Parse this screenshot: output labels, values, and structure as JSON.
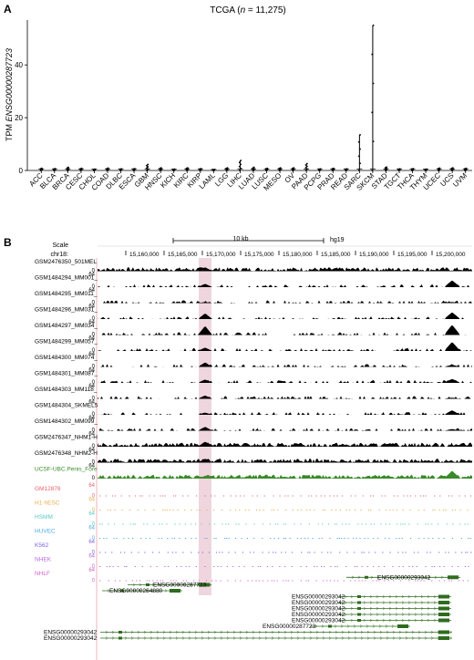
{
  "panel_a": {
    "letter": "A",
    "title_prefix": "TCGA (",
    "title_n": "n",
    "title_suffix": " = 11,275)",
    "ylabel_prefix": "TPM ",
    "ylabel_gene": "ENSG00000287723",
    "chart_data": {
      "type": "scatter",
      "title": "TCGA (n = 11,275)",
      "ylabel": "TPM ENSG00000287723",
      "ylim": [
        0,
        57
      ],
      "yticks": [
        0,
        20,
        40
      ],
      "categories": [
        "ACC",
        "BLCA",
        "BRCA",
        "CESC",
        "CHOL",
        "COAD",
        "DLBC",
        "ESCA",
        "GBM",
        "HNSC",
        "KICH",
        "KIRC",
        "KIRP",
        "LAML",
        "LGG",
        "LIHC",
        "LUAD",
        "LUSC",
        "MESO",
        "OV",
        "PAAD",
        "PCPG",
        "PRAD",
        "READ",
        "SARC",
        "SKCM",
        "STAD",
        "TGCT",
        "THCA",
        "THYM",
        "UCEC",
        "UCS",
        "UVM"
      ],
      "max_values": [
        0.8,
        0.7,
        1.2,
        0.8,
        0.5,
        0.9,
        0.6,
        0.7,
        2.3,
        1.0,
        0.5,
        1.0,
        0.7,
        0.4,
        1.0,
        3.8,
        1.2,
        0.8,
        1.0,
        1.0,
        2.6,
        0.6,
        0.8,
        0.6,
        13.5,
        55.0,
        1.3,
        0.6,
        0.7,
        0.5,
        0.9,
        1.0,
        0.8
      ]
    }
  },
  "panel_b": {
    "letter": "B",
    "scale_label": "Scale",
    "chrom_label": "chr18:",
    "scalebar_label": "10 kb",
    "assembly": "hg19",
    "positions": [
      "15,160,000",
      "15,165,000",
      "15,170,000",
      "15,175,000",
      "15,180,000",
      "15,185,000",
      "15,190,000",
      "15,195,000",
      "15,200,000"
    ],
    "ymax_label": "64",
    "ymin_label": "0",
    "colors": {
      "black": "#000000",
      "green": "#3a8a2a",
      "red": "#e8636e",
      "orange": "#e8b04f",
      "cyan": "#56c9c0",
      "blue": "#4fa8e8",
      "purple": "#7a5fe8",
      "violet": "#b466e0",
      "magenta": "#d861c8",
      "highlight": "#e8c4d0",
      "gene": "#2f6b1f"
    },
    "tracks": [
      {
        "label": "GSM2476350_501MEL",
        "color": "#000000",
        "kind": "dense",
        "peak": 0.35
      },
      {
        "label": "GSM1484294_MM001_",
        "color": "#000000",
        "kind": "sparse",
        "peak": 0.3,
        "right": 0.6
      },
      {
        "label": "GSM1484295_MM011_",
        "color": "#000000",
        "kind": "sparse",
        "peak": 0.1,
        "right": 0.1
      },
      {
        "label": "GSM1484296_MM031_",
        "color": "#000000",
        "kind": "sparse",
        "peak": 0.5,
        "right": 0.6
      },
      {
        "label": "GSM1484297_MM034_",
        "color": "#000000",
        "kind": "sparse",
        "peak": 0.8,
        "right": 0.9
      },
      {
        "label": "GSM1484299_MM057_",
        "color": "#000000",
        "kind": "sparse",
        "peak": 0.3,
        "right": 0.8
      },
      {
        "label": "GSM1484300_MM074_",
        "color": "#000000",
        "kind": "sparse",
        "peak": 0.4,
        "right": 0.2
      },
      {
        "label": "GSM1484301_MM087_",
        "color": "#000000",
        "kind": "sparse",
        "peak": 0.3,
        "right": 0.35
      },
      {
        "label": "GSM1484303_MM118_",
        "color": "#000000",
        "kind": "sparse",
        "peak": 0.3,
        "right": 0.1
      },
      {
        "label": "GSM1484304_SKMEL5",
        "color": "#000000",
        "kind": "sparse",
        "peak": 0.2,
        "right": 0.4
      },
      {
        "label": "GSM1484302_MM099_",
        "color": "#000000",
        "kind": "sparse",
        "peak": 0.35,
        "right": 0.15
      },
      {
        "label": "GSM2476347_NHM1-H",
        "color": "#000000",
        "kind": "dense",
        "peak": 0.45
      },
      {
        "label": "GSM2476348_NHM2-H",
        "color": "#000000",
        "kind": "dense",
        "peak": 0.35
      },
      {
        "label": "UCSF-UBC.Penis_Fore",
        "color": "#3a8a2a",
        "kind": "green",
        "peak": 0.2,
        "right": 0.7
      },
      {
        "label": "GM12878",
        "color": "#e8636e",
        "kind": "thin"
      },
      {
        "label": "H1-hESC",
        "color": "#e8b04f",
        "kind": "thin"
      },
      {
        "label": "HSMM",
        "color": "#56c9c0",
        "kind": "thin"
      },
      {
        "label": "HUVEC",
        "color": "#4fa8e8",
        "kind": "thin"
      },
      {
        "label": "K562",
        "color": "#7a5fe8",
        "kind": "thin"
      },
      {
        "label": "NHEK",
        "color": "#b466e0",
        "kind": "thin"
      },
      {
        "label": "NHLF",
        "color": "#d861c8",
        "kind": "thin"
      }
    ],
    "genes": [
      {
        "name": "ENSG00000287723",
        "side": "left"
      },
      {
        "name": "ENSG00000293042",
        "side": "right"
      },
      {
        "name": "ENSG00000264880",
        "side": "left"
      },
      {
        "name": "ENSG00000293042",
        "side": "left"
      },
      {
        "name": "ENSG00000293042",
        "side": "left"
      },
      {
        "name": "ENSG00000293042",
        "side": "left"
      },
      {
        "name": "ENSG00000293042",
        "side": "left"
      },
      {
        "name": "ENSG00000293042",
        "side": "left"
      },
      {
        "name": "ENSG00000287723",
        "side": "left"
      },
      {
        "name": "ENSG00000293042",
        "side": "left"
      },
      {
        "name": "ENSG00000293042",
        "side": "left"
      }
    ]
  }
}
